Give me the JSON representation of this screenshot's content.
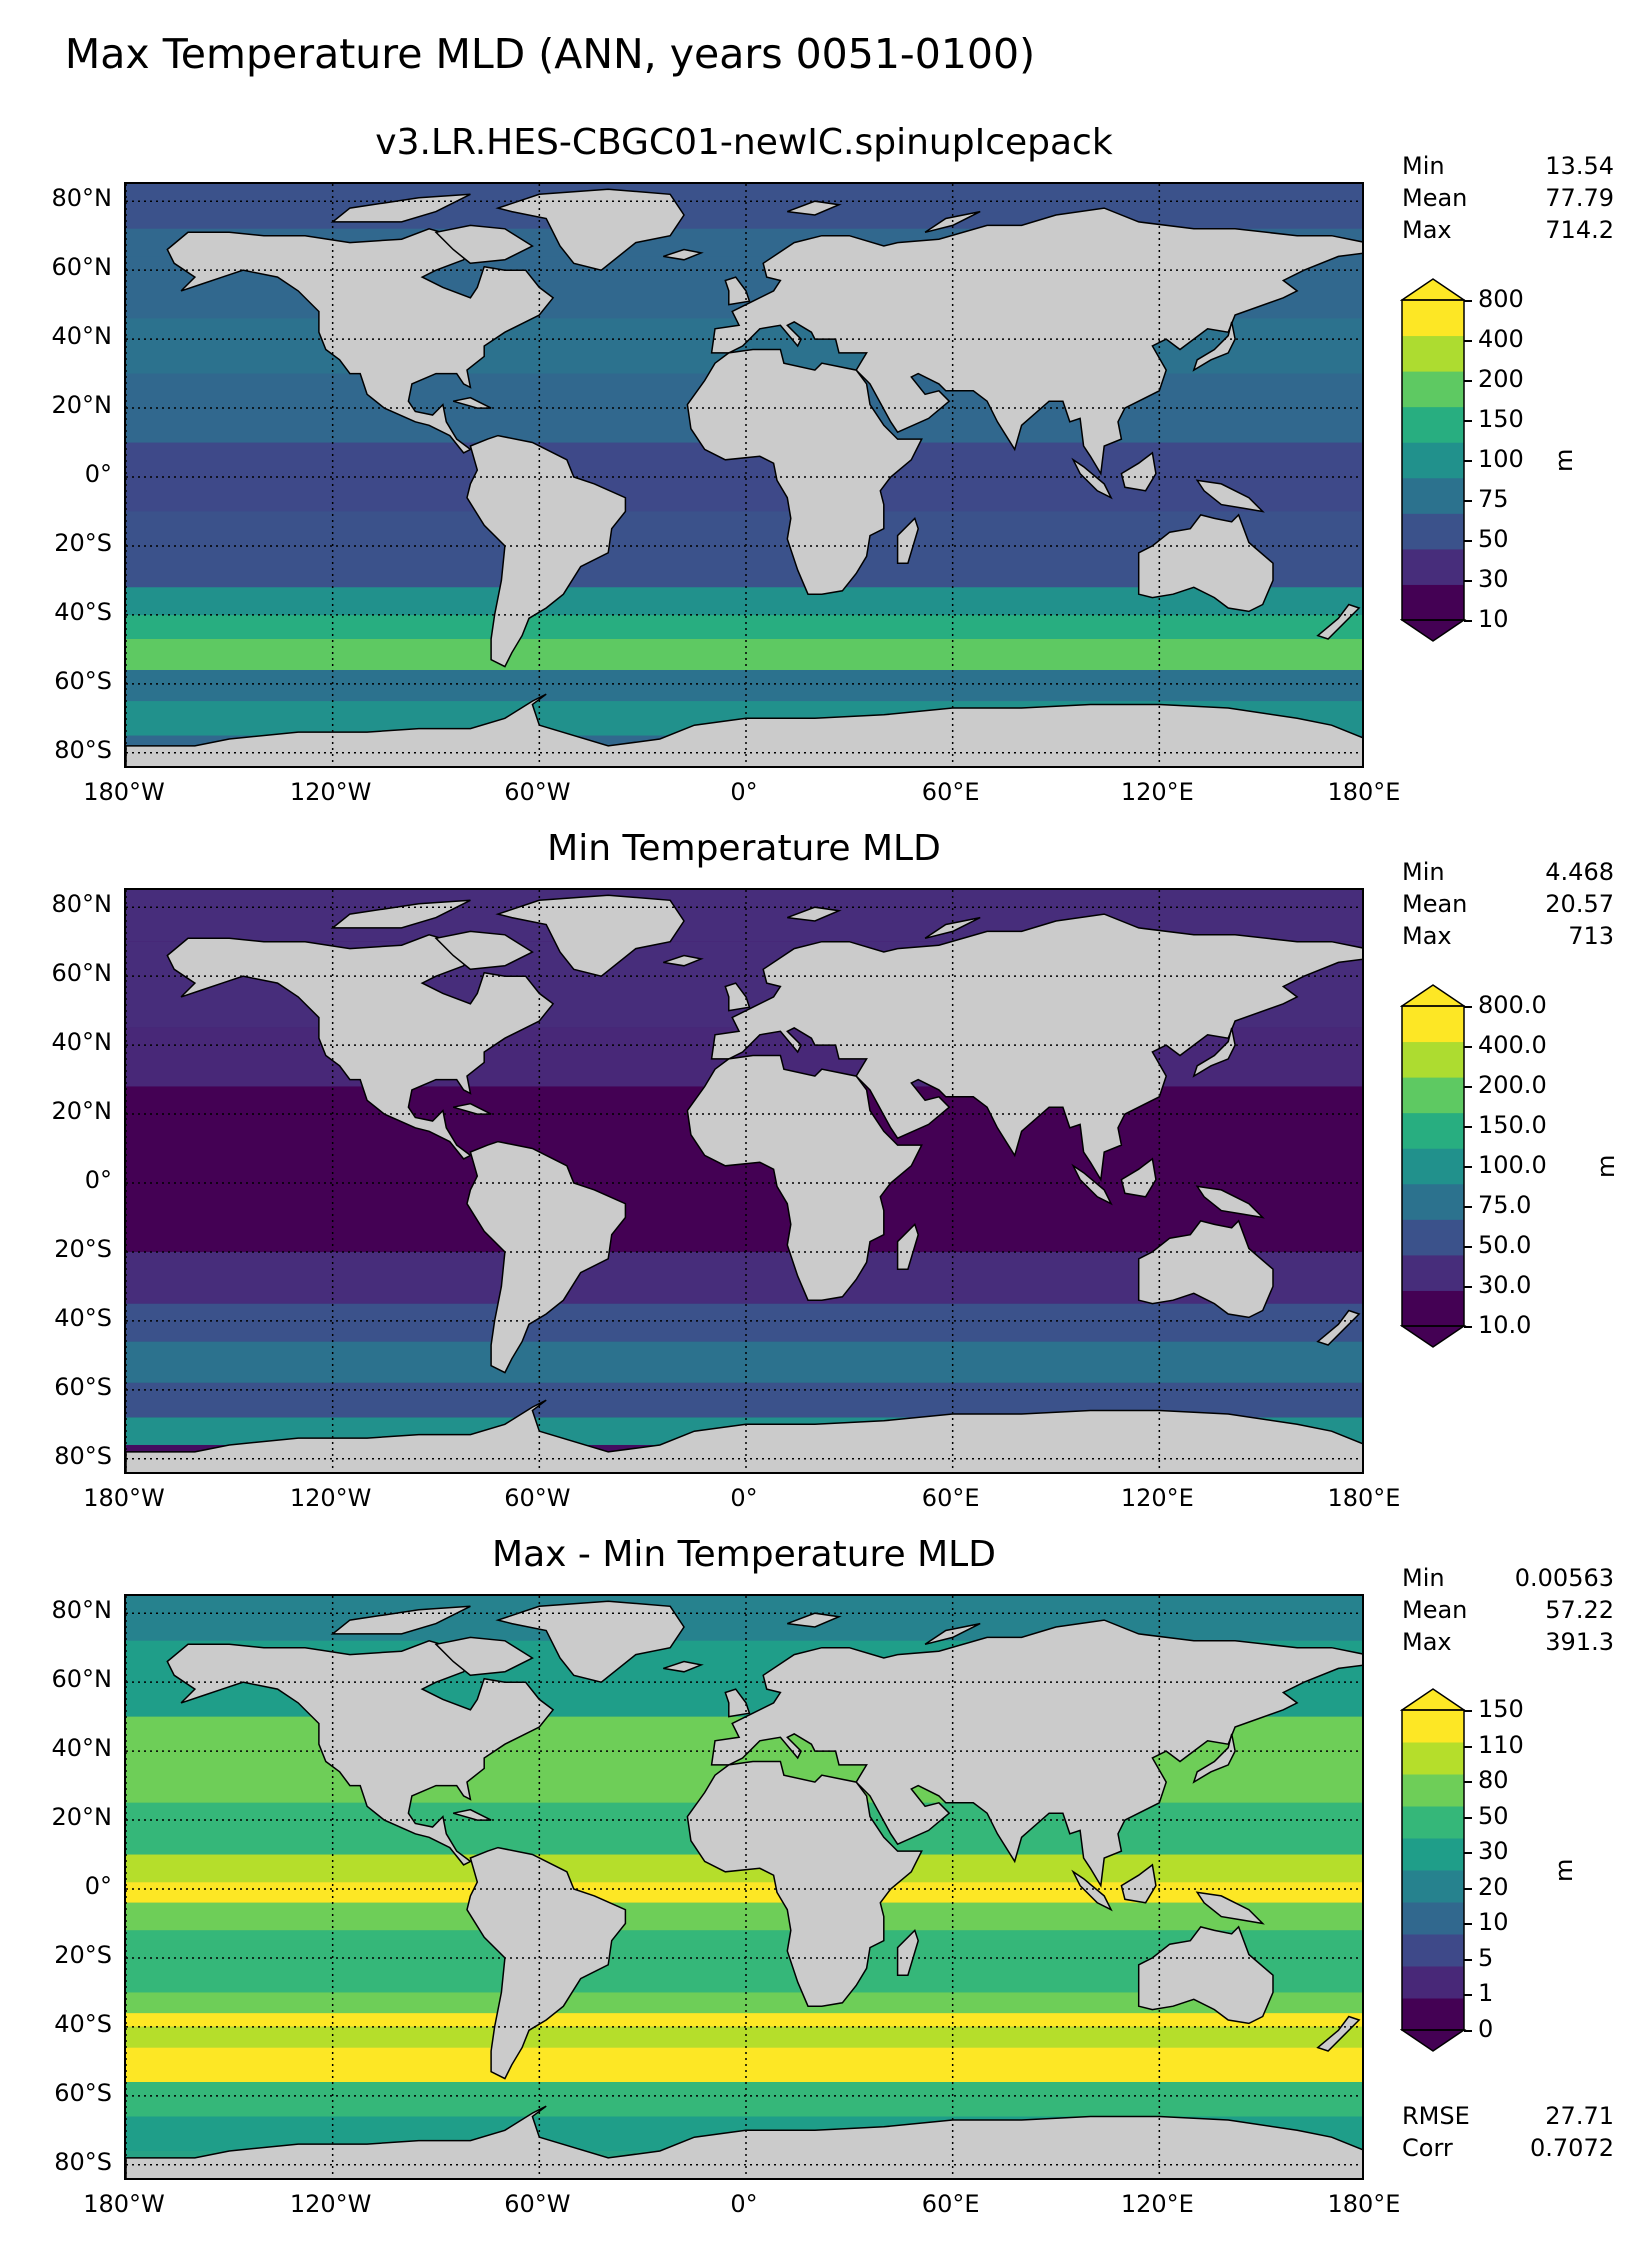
{
  "title": "Max Temperature MLD (ANN, years 0051-0100)",
  "colors": {
    "land": "#cbcbcb",
    "land_stroke": "#000000",
    "gridline": "#000000",
    "viridis": [
      "#440154",
      "#482979",
      "#3f4a8a",
      "#31678e",
      "#26828e",
      "#1f9e89",
      "#35b779",
      "#6dcd59",
      "#b4de2c",
      "#fde725"
    ]
  },
  "axes": {
    "lat_labels": [
      "80°N",
      "60°N",
      "40°N",
      "20°N",
      "0°",
      "20°S",
      "40°S",
      "60°S",
      "80°S"
    ],
    "lon_labels": [
      "180°W",
      "120°W",
      "60°W",
      "0°",
      "60°E",
      "120°E",
      "180°E"
    ]
  },
  "panels": [
    {
      "title": "v3.LR.HES-CBGC01-newIC.spinupIcepack",
      "stats": [
        {
          "label": "Min",
          "value": "13.54"
        },
        {
          "label": "Mean",
          "value": "77.79"
        },
        {
          "label": "Max",
          "value": "714.2"
        }
      ],
      "colorbar": {
        "ticks": [
          "800",
          "400",
          "200",
          "150",
          "100",
          "75",
          "50",
          "30",
          "10"
        ],
        "unit": "m",
        "colors": [
          "#440154",
          "#472d7b",
          "#3b528b",
          "#2c728e",
          "#21918c",
          "#28ae80",
          "#5ec962",
          "#addc30",
          "#fde725"
        ]
      },
      "ocean_base": "#31688e"
    },
    {
      "title": "Min Temperature MLD",
      "stats": [
        {
          "label": "Min",
          "value": "4.468"
        },
        {
          "label": "Mean",
          "value": "20.57"
        },
        {
          "label": "Max",
          "value": "713"
        }
      ],
      "colorbar": {
        "ticks": [
          "800.0",
          "400.0",
          "200.0",
          "150.0",
          "100.0",
          "75.0",
          "50.0",
          "30.0",
          "10.0"
        ],
        "unit": "m",
        "colors": [
          "#440154",
          "#472d7b",
          "#3b528b",
          "#2c728e",
          "#21918c",
          "#28ae80",
          "#5ec962",
          "#addc30",
          "#fde725"
        ]
      },
      "ocean_base": "#440c60"
    },
    {
      "title": "Max - Min Temperature MLD",
      "stats": [
        {
          "label": "Min",
          "value": "0.00563"
        },
        {
          "label": "Mean",
          "value": "57.22"
        },
        {
          "label": "Max",
          "value": "391.3"
        }
      ],
      "colorbar": {
        "ticks": [
          "150",
          "110",
          "80",
          "50",
          "30",
          "20",
          "10",
          "5",
          "1",
          "0"
        ],
        "unit": "m",
        "colors": [
          "#440154",
          "#482878",
          "#3e4989",
          "#31688e",
          "#26828e",
          "#1f9e89",
          "#35b779",
          "#6ece58",
          "#b5de2b",
          "#fde725"
        ]
      },
      "ocean_base": "#26a184",
      "extra_stats": [
        {
          "label": "RMSE",
          "value": "27.71"
        },
        {
          "label": "Corr",
          "value": "0.7072"
        }
      ]
    }
  ]
}
